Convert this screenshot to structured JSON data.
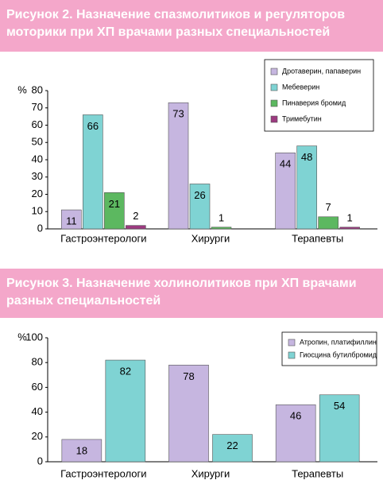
{
  "chart_data": [
    {
      "type": "bar",
      "title": "Рисунок 2. Назначение спазмолитиков и регуляторов моторики при ХП врачами разных специальностей",
      "y_label": "%",
      "categories": [
        "Гастроэнтерологи",
        "Хирурги",
        "Терапевты"
      ],
      "series": [
        {
          "name": "Дротаверин, папаверин",
          "color": "#c6b6e0",
          "values": [
            11,
            73,
            44
          ]
        },
        {
          "name": "Мебеверин",
          "color": "#7fd3d3",
          "values": [
            66,
            26,
            48
          ]
        },
        {
          "name": "Пинаверия бромид",
          "color": "#5cb860",
          "values": [
            21,
            1,
            7
          ]
        },
        {
          "name": "Тримебутин",
          "color": "#9c3a80",
          "values": [
            2,
            null,
            1
          ]
        }
      ],
      "ylim": [
        0,
        80
      ],
      "yticks": [
        0,
        10,
        20,
        30,
        40,
        50,
        60,
        70,
        80
      ],
      "grid": false,
      "legend": "top-right"
    },
    {
      "type": "bar",
      "title": "Рисунок 3. Назначение холинолитиков при ХП врачами разных специальностей",
      "y_label": "%",
      "categories": [
        "Гастроэнтерологи",
        "Хирурги",
        "Терапевты"
      ],
      "series": [
        {
          "name": "Атропин, платифиллин",
          "color": "#c6b6e0",
          "values": [
            18,
            78,
            46
          ]
        },
        {
          "name": "Гиосцина бутилбромид",
          "color": "#7fd3d3",
          "values": [
            82,
            22,
            54
          ]
        }
      ],
      "ylim": [
        0,
        100
      ],
      "yticks": [
        0,
        20,
        40,
        60,
        80,
        100
      ],
      "grid": false,
      "legend": "top-right"
    }
  ]
}
